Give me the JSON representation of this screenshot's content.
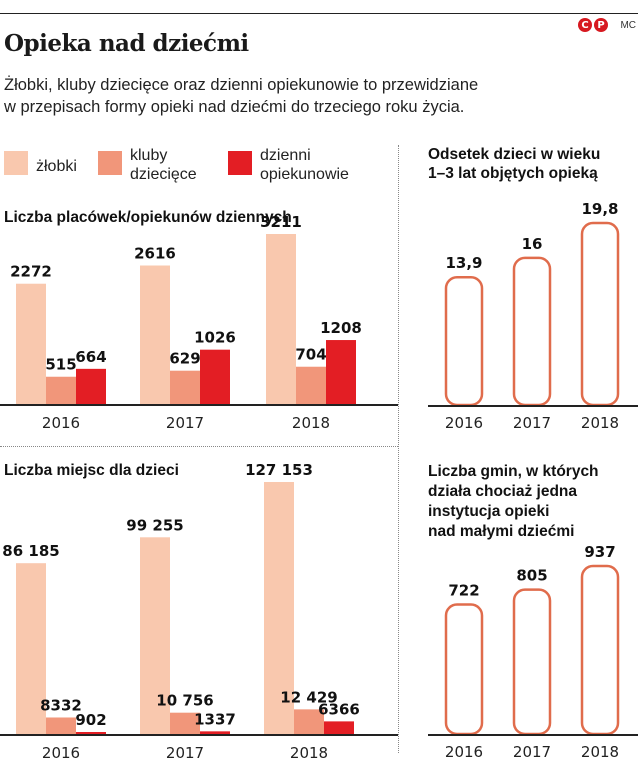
{
  "header": {
    "title": "Opieka nad dziećmi",
    "author": "MC",
    "logo_letters": [
      "C",
      "P"
    ],
    "lead_line1": "Żłobki, kluby dziecięce oraz dzienni opiekunowie to przewidziane",
    "lead_line2": "w przepisach formy opieki nad dziećmi do trzeciego roku życia."
  },
  "legend": [
    {
      "line1": "żłobki",
      "line2": "",
      "color": "#f9c8ae"
    },
    {
      "line1": "kluby",
      "line2": "dziecięce",
      "color": "#f1967a"
    },
    {
      "line1": "dzienni",
      "line2": "opiekunowie",
      "color": "#e31e24"
    }
  ],
  "colors": {
    "outline_bar": "#e06c4c",
    "axis": "#222222"
  },
  "chart_data": [
    {
      "type": "bar",
      "title": "Liczba placówek/opiekunów dziennych",
      "categories": [
        "2016",
        "2017",
        "2018"
      ],
      "series": [
        {
          "name": "żłobki",
          "values": [
            2272,
            2616,
            3211
          ],
          "labels": [
            "2272",
            "2616",
            "3211"
          ]
        },
        {
          "name": "kluby dziecięce",
          "values": [
            515,
            629,
            704
          ],
          "labels": [
            "515",
            "629",
            "704"
          ]
        },
        {
          "name": "dzienni opiekunowie",
          "values": [
            664,
            1026,
            1208
          ],
          "labels": [
            "664",
            "1026",
            "1208"
          ]
        }
      ],
      "ylim": [
        0,
        3600
      ]
    },
    {
      "type": "bar",
      "title": "Liczba miejsc dla dzieci",
      "categories": [
        "2016",
        "2017",
        "2018"
      ],
      "series": [
        {
          "name": "żłobki",
          "values": [
            86185,
            99255,
            127153
          ],
          "labels": [
            "86 185",
            "99 255",
            "127 153"
          ]
        },
        {
          "name": "kluby dziecięce",
          "values": [
            8332,
            10756,
            12429
          ],
          "labels": [
            "8332",
            "10 756",
            "12 429"
          ]
        },
        {
          "name": "dzienni opiekunowie",
          "values": [
            902,
            1337,
            6366
          ],
          "labels": [
            "902",
            "1337",
            "6366"
          ]
        }
      ],
      "ylim": [
        0,
        130000
      ]
    },
    {
      "type": "bar",
      "title_line1": "Odsetek dzieci w wieku",
      "title_line2": "1–3 lat objętych opieką",
      "categories": [
        "2016",
        "2017",
        "2018"
      ],
      "values": [
        13.9,
        16,
        19.8
      ],
      "labels": [
        "13,9",
        "16",
        "19,8"
      ],
      "ylim": [
        0,
        20.5
      ]
    },
    {
      "type": "bar",
      "title_line1": "Liczba gmin, w których",
      "title_line2": "działa chociaż jedna",
      "title_line3": "instytucja opieki",
      "title_line4": "nad małymi dziećmi",
      "categories": [
        "2016",
        "2017",
        "2018"
      ],
      "values": [
        722,
        805,
        937
      ],
      "labels": [
        "722",
        "805",
        "937"
      ],
      "ylim": [
        0,
        960
      ]
    }
  ]
}
